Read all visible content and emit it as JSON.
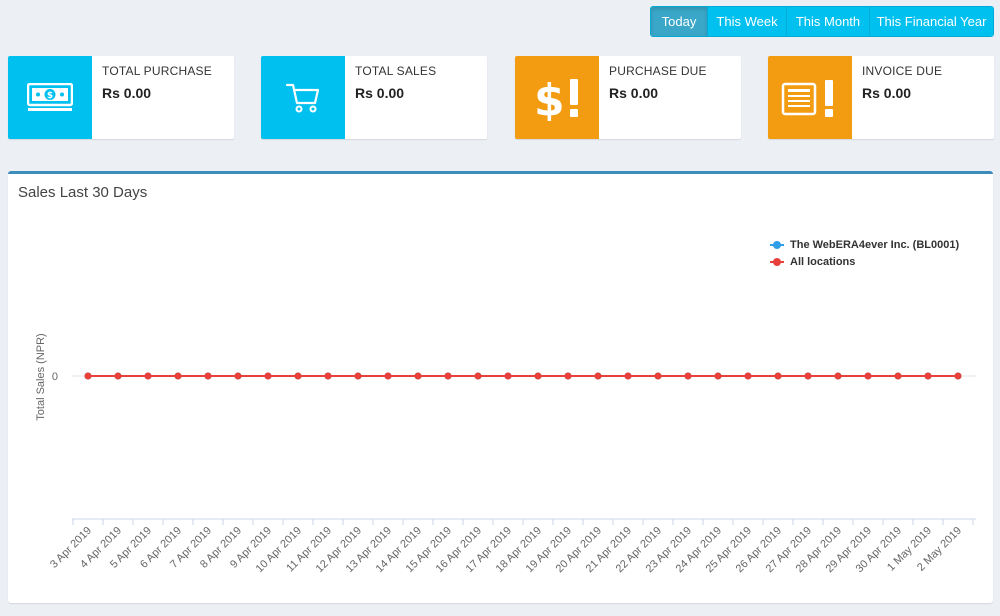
{
  "filters": [
    {
      "label": "Today",
      "active": true
    },
    {
      "label": "This Week",
      "active": false
    },
    {
      "label": "This Month",
      "active": false
    },
    {
      "label": "This Financial Year",
      "active": false
    }
  ],
  "info_boxes": [
    {
      "label": "TOTAL PURCHASE",
      "value": "Rs 0.00",
      "icon": "money-icon",
      "color": "#00c0ef"
    },
    {
      "label": "TOTAL SALES",
      "value": "Rs 0.00",
      "icon": "cart-icon",
      "color": "#00c0ef"
    },
    {
      "label": "PURCHASE DUE",
      "value": "Rs 0.00",
      "icon": "dollar-exclamation-icon",
      "color": "#f39c12"
    },
    {
      "label": "INVOICE DUE",
      "value": "Rs 0.00",
      "icon": "invoice-exclamation-icon",
      "color": "#f39c12"
    }
  ],
  "chart_box": {
    "title": "Sales Last 30 Days"
  },
  "chart_data": {
    "type": "line",
    "title": "",
    "ylabel": "Total Sales (NPR)",
    "xlabel": "",
    "yticks": [
      0
    ],
    "categories": [
      "3 Apr 2019",
      "4 Apr 2019",
      "5 Apr 2019",
      "6 Apr 2019",
      "7 Apr 2019",
      "8 Apr 2019",
      "9 Apr 2019",
      "10 Apr 2019",
      "11 Apr 2019",
      "12 Apr 2019",
      "13 Apr 2019",
      "14 Apr 2019",
      "15 Apr 2019",
      "16 Apr 2019",
      "17 Apr 2019",
      "18 Apr 2019",
      "19 Apr 2019",
      "20 Apr 2019",
      "21 Apr 2019",
      "22 Apr 2019",
      "23 Apr 2019",
      "24 Apr 2019",
      "25 Apr 2019",
      "26 Apr 2019",
      "27 Apr 2019",
      "28 Apr 2019",
      "29 Apr 2019",
      "30 Apr 2019",
      "1 May 2019",
      "2 May 2019"
    ],
    "series": [
      {
        "name": "The WebERA4ever Inc. (BL0001)",
        "color": "#2f9ee8",
        "values": [
          0,
          0,
          0,
          0,
          0,
          0,
          0,
          0,
          0,
          0,
          0,
          0,
          0,
          0,
          0,
          0,
          0,
          0,
          0,
          0,
          0,
          0,
          0,
          0,
          0,
          0,
          0,
          0,
          0,
          0
        ]
      },
      {
        "name": "All locations",
        "color": "#e8413c",
        "values": [
          0,
          0,
          0,
          0,
          0,
          0,
          0,
          0,
          0,
          0,
          0,
          0,
          0,
          0,
          0,
          0,
          0,
          0,
          0,
          0,
          0,
          0,
          0,
          0,
          0,
          0,
          0,
          0,
          0,
          0
        ]
      }
    ],
    "legend": "top-right",
    "grid": false
  }
}
